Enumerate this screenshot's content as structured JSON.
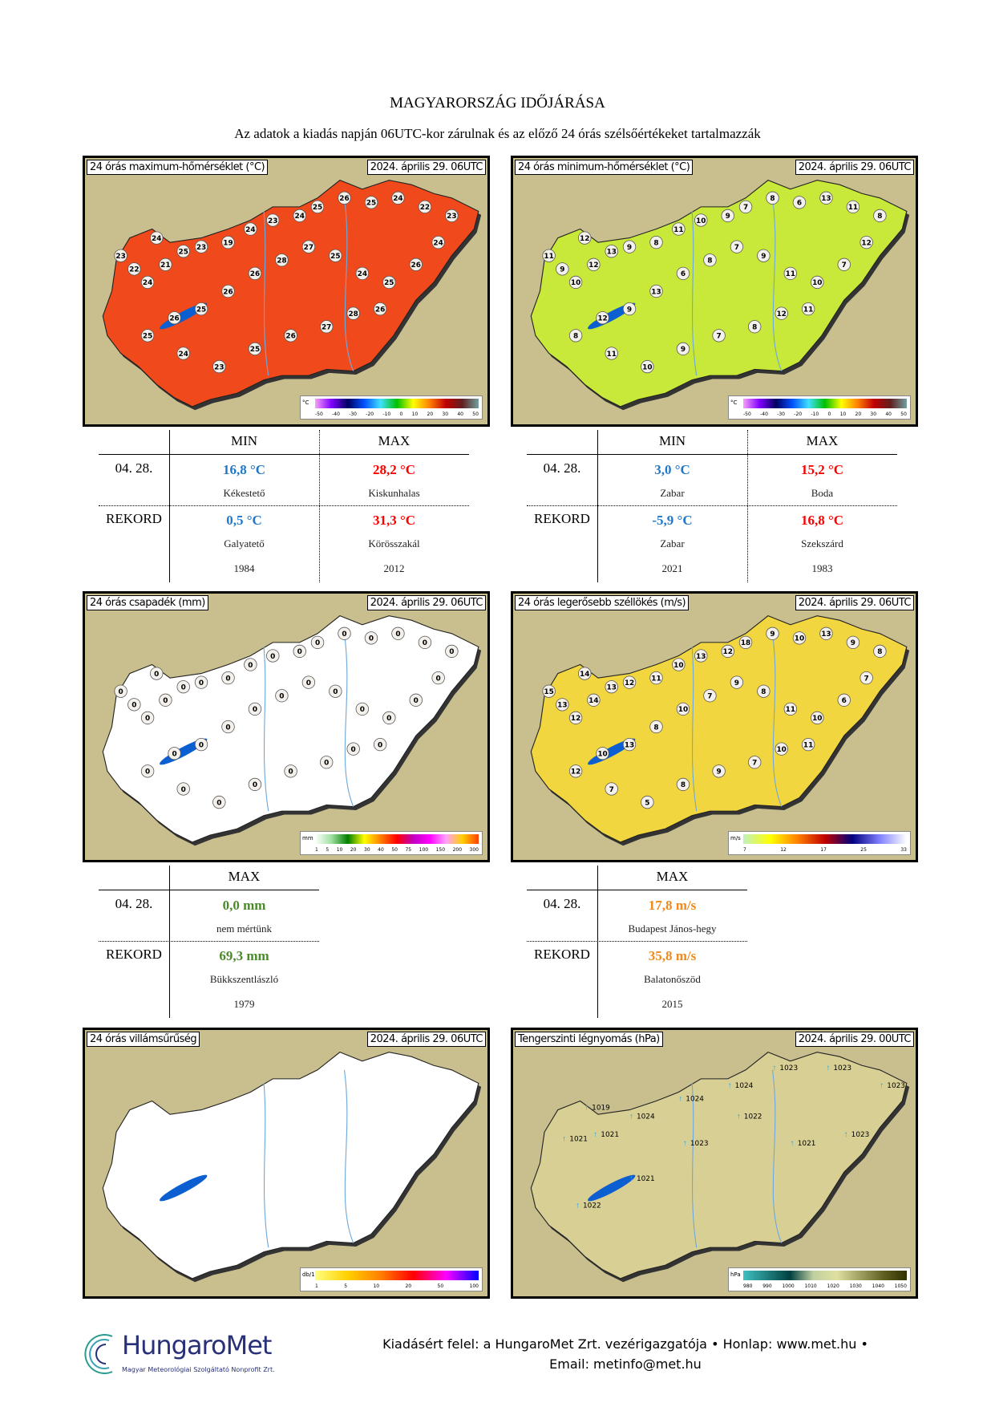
{
  "header": {
    "title": "MAGYARORSZÁG IDŐJÁRÁSA",
    "subtitle": "Az adatok a kiadás napján 06UTC-kor zárulnak és az előző 24 órás szélsőértékeket tartalmazzák"
  },
  "maps": [
    {
      "title": "24 órás maximum-hőmérséklet (°C)",
      "date": "2024. április 29. 06UTC",
      "fill": "#f04a1c",
      "legend_unit": "°C",
      "legend_ticks": [
        "-50",
        "-40",
        "-30",
        "-20",
        "-10",
        "0",
        "10",
        "20",
        "30",
        "40",
        "50"
      ],
      "stations": [
        "24",
        "23",
        "22",
        "24",
        "21",
        "25",
        "23",
        "19",
        "24",
        "23",
        "24",
        "25",
        "26",
        "25",
        "24",
        "22",
        "23",
        "24",
        "26",
        "25",
        "24",
        "25",
        "27",
        "28",
        "26",
        "26",
        "25",
        "26",
        "25",
        "24",
        "23",
        "25",
        "26",
        "27",
        "28",
        "26"
      ]
    },
    {
      "title": "24 órás minimum-hőmérséklet (°C)",
      "date": "2024. április 29. 06UTC",
      "fill": "#c8e83a",
      "legend_unit": "°C",
      "legend_ticks": [
        "-50",
        "-40",
        "-30",
        "-20",
        "-10",
        "0",
        "10",
        "20",
        "30",
        "40",
        "50"
      ],
      "stations": [
        "12",
        "11",
        "9",
        "10",
        "12",
        "13",
        "9",
        "8",
        "11",
        "10",
        "9",
        "7",
        "8",
        "6",
        "13",
        "11",
        "8",
        "12",
        "7",
        "10",
        "11",
        "9",
        "7",
        "8",
        "6",
        "13",
        "9",
        "12",
        "8",
        "11",
        "10",
        "9",
        "7",
        "8",
        "12",
        "11"
      ]
    },
    {
      "title": "24 órás csapadék (mm)",
      "date": "2024. április 29. 06UTC",
      "fill": "#ffffff",
      "legend_unit": "mm",
      "legend_ticks": [
        "1",
        "5",
        "10",
        "20",
        "30",
        "40",
        "50",
        "75",
        "100",
        "150",
        "200",
        "300"
      ],
      "stations": [
        "0",
        "0",
        "0",
        "0",
        "0",
        "0",
        "0",
        "0",
        "0",
        "0",
        "0",
        "0",
        "0",
        "0",
        "0",
        "0",
        "0",
        "0",
        "0",
        "0",
        "0",
        "0",
        "0",
        "0",
        "0",
        "0",
        "0",
        "0",
        "0",
        "0",
        "0",
        "0",
        "0",
        "0",
        "0",
        "0"
      ]
    },
    {
      "title": "24 órás legerősebb széllökés (m/s)",
      "date": "2024. április 29. 06UTC",
      "fill": "#f2d640",
      "legend_unit": "m/s",
      "legend_ticks": [
        "7",
        "12",
        "17",
        "25",
        "33"
      ],
      "stations": [
        "14",
        "15",
        "13",
        "12",
        "14",
        "13",
        "12",
        "11",
        "10",
        "13",
        "12",
        "18",
        "9",
        "10",
        "13",
        "9",
        "8",
        "7",
        "6",
        "10",
        "11",
        "8",
        "9",
        "7",
        "10",
        "8",
        "13",
        "10",
        "12",
        "7",
        "5",
        "8",
        "9",
        "7",
        "10",
        "11"
      ]
    },
    {
      "title": "24 órás villámsűrűség",
      "date": "2024. április 29. 06UTC",
      "fill": "#ffffff",
      "legend_unit": "db/10km2",
      "legend_ticks": [
        "1",
        "5",
        "10",
        "20",
        "50",
        "100"
      ],
      "stations": []
    },
    {
      "title": "Tengerszinti légnyomás (hPa)",
      "date": "2024. április 29. 00UTC",
      "fill": "#d8cf95",
      "legend_unit": "hPa",
      "legend_ticks": [
        "980",
        "990",
        "1000",
        "1010",
        "1020",
        "1030",
        "1040",
        "1050"
      ],
      "stations": [
        "1019",
        "1021",
        "1021",
        "1024",
        "1024",
        "1024",
        "1023",
        "1023",
        "1023",
        "1023",
        "1021",
        "1022",
        "1023",
        "1021",
        "1022"
      ]
    }
  ],
  "tables": [
    {
      "headers": [
        "MIN",
        "MAX"
      ],
      "rows": [
        {
          "label": "04. 28.",
          "values": [
            {
              "v": "16,8 °C",
              "place": "Kékestető"
            },
            {
              "v": "28,2 °C",
              "place": "Kiskunhalas"
            }
          ]
        },
        {
          "label": "REKORD",
          "values": [
            {
              "v": "0,5 °C",
              "place": "Galyatető",
              "year": "1984"
            },
            {
              "v": "31,3 °C",
              "place": "Körösszakál",
              "year": "2012"
            }
          ]
        }
      ]
    },
    {
      "headers": [
        "MIN",
        "MAX"
      ],
      "rows": [
        {
          "label": "04. 28.",
          "values": [
            {
              "v": "3,0 °C",
              "place": "Zabar"
            },
            {
              "v": "15,2 °C",
              "place": "Boda"
            }
          ]
        },
        {
          "label": "REKORD",
          "values": [
            {
              "v": "-5,9 °C",
              "place": "Zabar",
              "year": "2021"
            },
            {
              "v": "16,8 °C",
              "place": "Szekszárd",
              "year": "1983"
            }
          ]
        }
      ]
    },
    {
      "headers": [
        "MAX"
      ],
      "rows": [
        {
          "label": "04. 28.",
          "values": [
            {
              "v": "0,0 mm",
              "place": "nem mértünk"
            }
          ]
        },
        {
          "label": "REKORD",
          "values": [
            {
              "v": "69,3 mm",
              "place": "Bükkszentlászló",
              "year": "1979"
            }
          ]
        }
      ]
    },
    {
      "headers": [
        "MAX"
      ],
      "rows": [
        {
          "label": "04. 28.",
          "values": [
            {
              "v": "17,8 m/s",
              "place": "Budapest János-hegy"
            }
          ]
        },
        {
          "label": "REKORD",
          "values": [
            {
              "v": "35,8 m/s",
              "place": "Balatonőszöd",
              "year": "2015"
            }
          ]
        }
      ]
    }
  ],
  "footer": {
    "logo_name": "HungaroMet",
    "logo_sub": "Magyar Meteorológiai Szolgáltató Nonprofit Zrt.",
    "line1": "Kiadásért felel: a HungaroMet Zrt. vezérigazgatója • Honlap: www.met.hu •",
    "line2": "Email: metinfo@met.hu"
  }
}
